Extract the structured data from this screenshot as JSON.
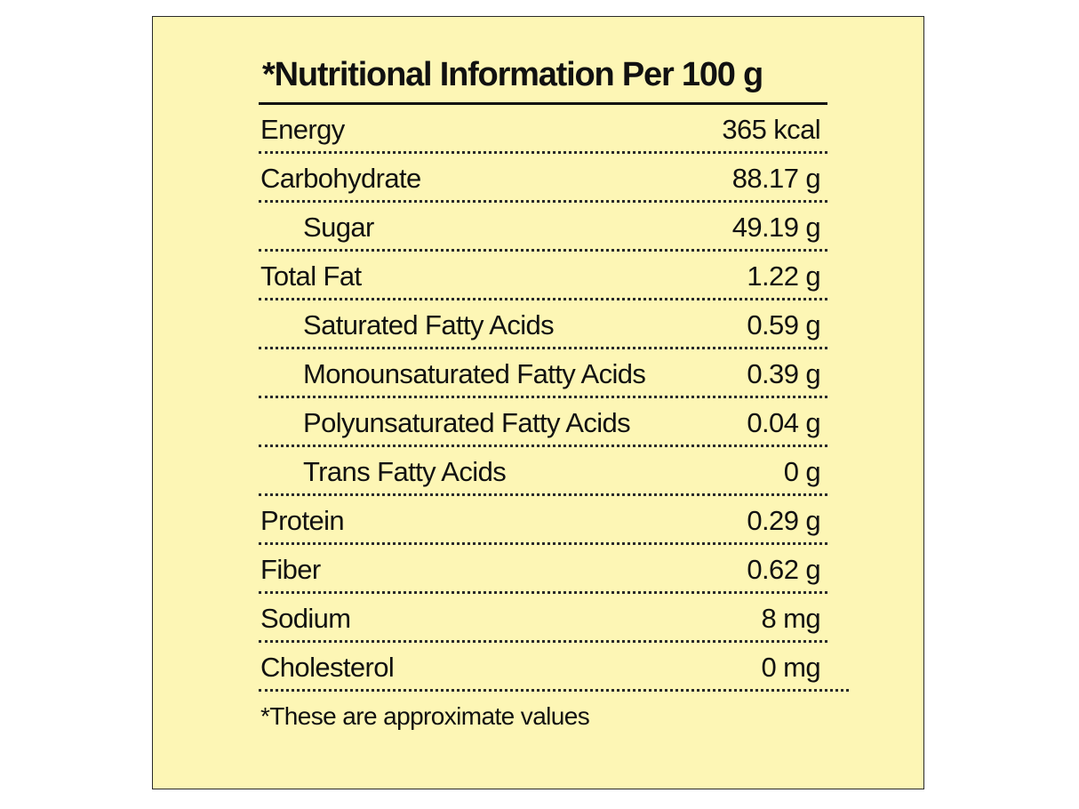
{
  "title": "*Nutritional Information Per 100 g",
  "rows": [
    {
      "label": "Energy",
      "value": "365 kcal",
      "indent": false
    },
    {
      "label": "Carbohydrate",
      "value": "88.17 g",
      "indent": false
    },
    {
      "label": "Sugar",
      "value": "49.19 g",
      "indent": true
    },
    {
      "label": "Total Fat",
      "value": "1.22 g",
      "indent": false
    },
    {
      "label": "Saturated Fatty Acids",
      "value": "0.59 g",
      "indent": true
    },
    {
      "label": "Monounsaturated Fatty Acids",
      "value": "0.39 g",
      "indent": true
    },
    {
      "label": "Polyunsaturated Fatty Acids",
      "value": "0.04 g",
      "indent": true
    },
    {
      "label": "Trans Fatty Acids",
      "value": "0 g",
      "indent": true
    },
    {
      "label": "Protein",
      "value": "0.29 g",
      "indent": false
    },
    {
      "label": "Fiber",
      "value": "0.62 g",
      "indent": false
    },
    {
      "label": "Sodium",
      "value": "8 mg",
      "indent": false
    },
    {
      "label": "Cholesterol",
      "value": "0 mg",
      "indent": false
    }
  ],
  "footnote": "*These are approximate values",
  "colors": {
    "background": "#fdf6b5",
    "text": "#111111"
  }
}
